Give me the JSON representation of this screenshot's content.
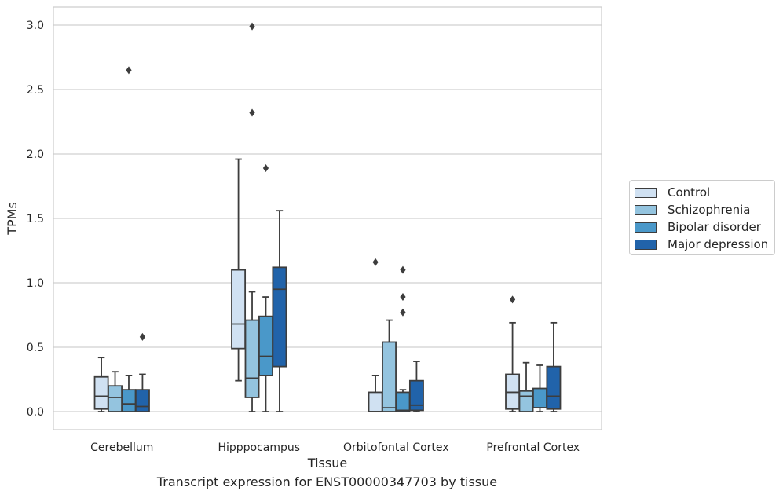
{
  "chart_data": {
    "type": "box",
    "xlabel": "Tissue",
    "ylabel": "TPMs",
    "ylim": [
      -0.14,
      3.14
    ],
    "yticks": [
      0.0,
      0.5,
      1.0,
      1.5,
      2.0,
      2.5,
      3.0
    ],
    "ytick_labels": [
      "0.0",
      "0.5",
      "1.0",
      "1.5",
      "2.0",
      "2.5",
      "3.0"
    ],
    "categories": [
      "Cerebellum",
      "Hipppocampus",
      "Orbitofontal Cortex",
      "Prefrontal Cortex"
    ],
    "grid": true,
    "legend_position": "right",
    "caption": "Transcript expression for ENST00000347703 by tissue",
    "series": [
      {
        "name": "Control",
        "color": "#d0e1f2",
        "boxes": [
          {
            "min": 0.0,
            "q1": 0.02,
            "median": 0.12,
            "q3": 0.27,
            "max": 0.42,
            "outliers": []
          },
          {
            "min": 0.24,
            "q1": 0.49,
            "median": 0.68,
            "q3": 1.1,
            "max": 1.96,
            "outliers": []
          },
          {
            "min": 0.0,
            "q1": 0.0,
            "median": 0.0,
            "q3": 0.15,
            "max": 0.28,
            "outliers": [
              1.16
            ]
          },
          {
            "min": 0.0,
            "q1": 0.02,
            "median": 0.15,
            "q3": 0.29,
            "max": 0.69,
            "outliers": [
              0.87
            ]
          }
        ]
      },
      {
        "name": "Schizophrenia",
        "color": "#94c4df",
        "boxes": [
          {
            "min": 0.0,
            "q1": 0.0,
            "median": 0.11,
            "q3": 0.2,
            "max": 0.31,
            "outliers": []
          },
          {
            "min": 0.0,
            "q1": 0.11,
            "median": 0.26,
            "q3": 0.71,
            "max": 0.93,
            "outliers": [
              2.32,
              2.99
            ]
          },
          {
            "min": 0.0,
            "q1": 0.0,
            "median": 0.03,
            "q3": 0.54,
            "max": 0.71,
            "outliers": []
          },
          {
            "min": 0.0,
            "q1": 0.0,
            "median": 0.12,
            "q3": 0.16,
            "max": 0.38,
            "outliers": []
          }
        ]
      },
      {
        "name": "Bipolar disorder",
        "color": "#4a98c9",
        "boxes": [
          {
            "min": 0.0,
            "q1": 0.0,
            "median": 0.06,
            "q3": 0.17,
            "max": 0.28,
            "outliers": [
              2.65
            ]
          },
          {
            "min": 0.0,
            "q1": 0.28,
            "median": 0.43,
            "q3": 0.74,
            "max": 0.89,
            "outliers": [
              1.89
            ]
          },
          {
            "min": 0.0,
            "q1": 0.0,
            "median": 0.01,
            "q3": 0.15,
            "max": 0.17,
            "outliers": [
              0.77,
              0.89,
              1.1
            ]
          },
          {
            "min": 0.0,
            "q1": 0.03,
            "median": 0.03,
            "q3": 0.18,
            "max": 0.36,
            "outliers": []
          }
        ]
      },
      {
        "name": "Major depression",
        "color": "#2163aa",
        "boxes": [
          {
            "min": 0.0,
            "q1": 0.0,
            "median": 0.04,
            "q3": 0.17,
            "max": 0.29,
            "outliers": [
              0.58
            ]
          },
          {
            "min": 0.0,
            "q1": 0.35,
            "median": 0.95,
            "q3": 1.12,
            "max": 1.56,
            "outliers": []
          },
          {
            "min": 0.0,
            "q1": 0.01,
            "median": 0.05,
            "q3": 0.24,
            "max": 0.39,
            "outliers": []
          },
          {
            "min": 0.0,
            "q1": 0.02,
            "median": 0.12,
            "q3": 0.35,
            "max": 0.69,
            "outliers": []
          }
        ]
      }
    ]
  }
}
